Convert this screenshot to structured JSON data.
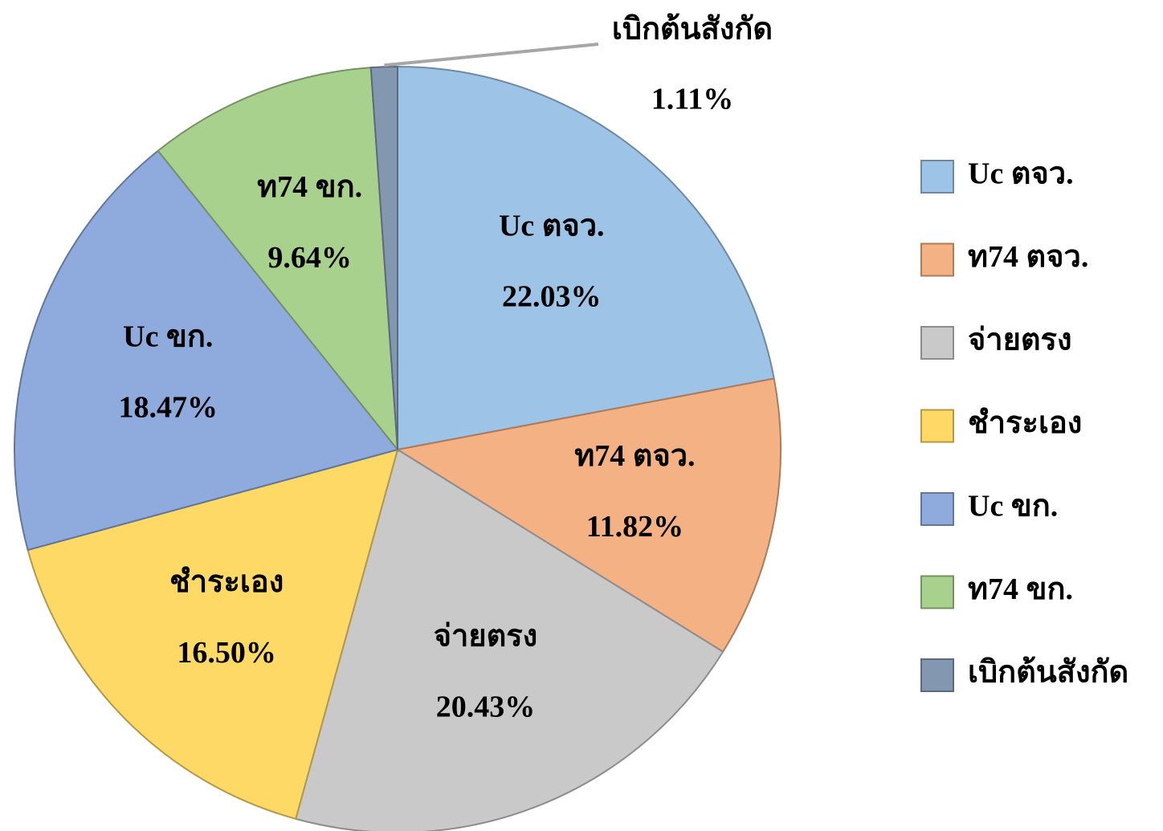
{
  "chart_data": {
    "type": "pie",
    "categories": [
      "Uc ตจว.",
      "ท74 ตจว.",
      "จ่ายตรง",
      "ชำระเอง",
      "Uc ขก.",
      "ท74 ขก.",
      "เบิกต้นสังกัด"
    ],
    "values": [
      22.03,
      11.82,
      20.43,
      16.5,
      18.47,
      9.64,
      1.11
    ],
    "value_labels": [
      "22.03%",
      "11.82%",
      "20.43%",
      "16.50%",
      "18.47%",
      "9.64%",
      "1.11%"
    ],
    "colors": [
      "#9dc3e6",
      "#f4b183",
      "#c9c9c9",
      "#ffd966",
      "#8faadc",
      "#a9d18e",
      "#8497b0"
    ],
    "legend": "right"
  }
}
